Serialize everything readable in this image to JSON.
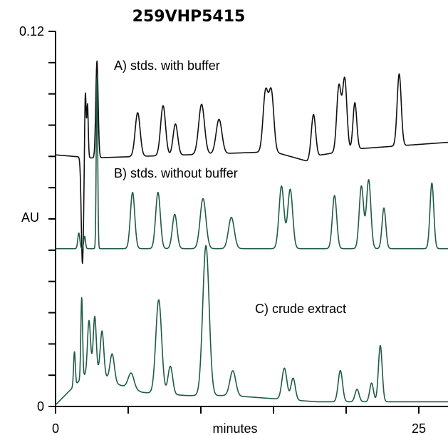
{
  "chart_data": {
    "type": "line",
    "title": "259VHP5415",
    "xlabel": "minutes",
    "ylabel": "AU",
    "xlim": [
      0,
      27
    ],
    "ylim": [
      0,
      0.12
    ],
    "x_ticks": [
      {
        "value": 0,
        "label": "0"
      },
      {
        "value": 5,
        "label": ""
      },
      {
        "value": 10,
        "label": ""
      },
      {
        "value": 15,
        "label": ""
      },
      {
        "value": 20,
        "label": ""
      },
      {
        "value": 25,
        "label": "25"
      }
    ],
    "y_ticks": [
      {
        "value": 0,
        "label": "0"
      },
      {
        "value": 0.01,
        "label": ""
      },
      {
        "value": 0.02,
        "label": ""
      },
      {
        "value": 0.03,
        "label": ""
      },
      {
        "value": 0.04,
        "label": ""
      },
      {
        "value": 0.05,
        "label": ""
      },
      {
        "value": 0.06,
        "label": ""
      },
      {
        "value": 0.07,
        "label": ""
      },
      {
        "value": 0.08,
        "label": ""
      },
      {
        "value": 0.09,
        "label": ""
      },
      {
        "value": 0.1,
        "label": ""
      },
      {
        "value": 0.11,
        "label": ""
      },
      {
        "value": 0.12,
        "label": "0.12"
      }
    ],
    "grid": false,
    "legend": "none",
    "series": [
      {
        "label": "A) stds. with buffer",
        "color": "#111111",
        "baseline": 0.0805,
        "peaks": [
          [
            1.85,
            -0.034,
            0.08
          ],
          [
            2.05,
            0.022,
            0.05
          ],
          [
            2.2,
            0.017,
            0.05
          ],
          [
            2.85,
            0.031,
            0.08
          ],
          [
            5.65,
            0.014,
            0.17
          ],
          [
            7.4,
            0.016,
            0.17
          ],
          [
            8.25,
            0.01,
            0.16
          ],
          [
            10.05,
            0.016,
            0.2
          ],
          [
            11.25,
            0.011,
            0.2
          ],
          [
            14.45,
            0.019,
            0.17
          ],
          [
            14.85,
            0.019,
            0.17
          ],
          [
            17.75,
            0.014,
            0.15
          ],
          [
            19.5,
            0.021,
            0.15
          ],
          [
            19.9,
            0.023,
            0.15
          ],
          [
            20.6,
            0.015,
            0.13
          ],
          [
            23.65,
            0.023,
            0.14
          ]
        ],
        "drift": [
          [
            0,
            0
          ],
          [
            2.5,
            -0.001
          ],
          [
            9,
            0
          ],
          [
            15,
            0.001
          ],
          [
            17.3,
            -0.002
          ],
          [
            18.3,
            0
          ],
          [
            21,
            0.002
          ],
          [
            27,
            0.004
          ]
        ]
      },
      {
        "label": "B) stds. without buffer",
        "color": "#1f5c46",
        "baseline": 0.0505,
        "peaks": [
          [
            1.6,
            0.005,
            0.07
          ],
          [
            2.0,
            0.004,
            0.06
          ],
          [
            2.85,
            0.055,
            0.05
          ],
          [
            5.3,
            0.018,
            0.15
          ],
          [
            7.05,
            0.018,
            0.16
          ],
          [
            8.2,
            0.011,
            0.16
          ],
          [
            10.15,
            0.016,
            0.2
          ],
          [
            12.1,
            0.01,
            0.2
          ],
          [
            15.55,
            0.02,
            0.17
          ],
          [
            16.15,
            0.019,
            0.17
          ],
          [
            19.2,
            0.017,
            0.15
          ],
          [
            21.05,
            0.02,
            0.15
          ],
          [
            21.55,
            0.022,
            0.15
          ],
          [
            22.6,
            0.013,
            0.13
          ],
          [
            25.9,
            0.021,
            0.13
          ]
        ],
        "drift": [
          [
            0,
            0
          ],
          [
            27,
            0
          ]
        ]
      },
      {
        "label": "C) crude extract",
        "color": "#1f5c46",
        "baseline": 0.0005,
        "peaks": [
          [
            1.3,
            0.011,
            0.06
          ],
          [
            1.8,
            0.026,
            0.06
          ],
          [
            2.3,
            0.016,
            0.1
          ],
          [
            2.7,
            0.017,
            0.1
          ],
          [
            3.2,
            0.014,
            0.12
          ],
          [
            3.9,
            0.009,
            0.15
          ],
          [
            5.2,
            0.005,
            0.2
          ],
          [
            7.1,
            0.03,
            0.2
          ],
          [
            7.9,
            0.009,
            0.16
          ],
          [
            10.35,
            0.048,
            0.22
          ],
          [
            12.2,
            0.008,
            0.2
          ],
          [
            15.75,
            0.01,
            0.17
          ],
          [
            16.35,
            0.007,
            0.15
          ],
          [
            19.6,
            0.01,
            0.15
          ],
          [
            20.75,
            0.004,
            0.14
          ],
          [
            21.75,
            0.006,
            0.13
          ],
          [
            22.35,
            0.018,
            0.13
          ]
        ],
        "drift": [
          [
            0,
            0
          ],
          [
            1.7,
            0.008
          ],
          [
            2.5,
            0.012
          ],
          [
            4,
            0.007
          ],
          [
            6,
            0.004
          ],
          [
            9,
            0.003
          ],
          [
            12,
            0.003
          ],
          [
            15,
            0.002
          ],
          [
            18,
            0.001
          ],
          [
            27,
            0.001
          ]
        ]
      }
    ]
  }
}
